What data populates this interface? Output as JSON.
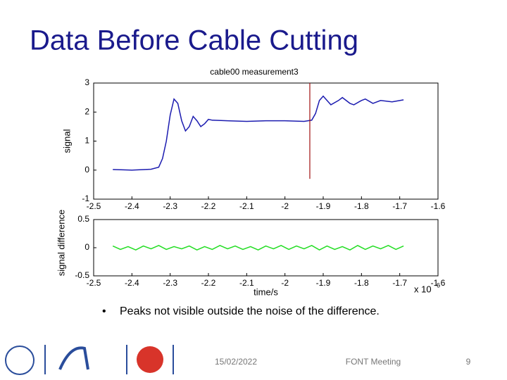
{
  "slide": {
    "title": "Data Before Cable Cutting",
    "bullet": "Peaks not visible outside the noise of the difference.",
    "date": "15/02/2022",
    "event": "FONT Meeting",
    "page": "9"
  },
  "chart_data": [
    {
      "type": "line",
      "title": "cable00 measurement3",
      "y_label": "signal",
      "x": [
        -2.45,
        -2.4,
        -2.35,
        -2.33,
        -2.32,
        -2.31,
        -2.3,
        -2.29,
        -2.28,
        -2.27,
        -2.26,
        -2.25,
        -2.24,
        -2.23,
        -2.22,
        -2.21,
        -2.2,
        -2.19,
        -2.15,
        -2.1,
        -2.05,
        -2.0,
        -1.95,
        -1.94,
        -1.93,
        -1.92,
        -1.91,
        -1.9,
        -1.89,
        -1.88,
        -1.86,
        -1.85,
        -1.83,
        -1.82,
        -1.8,
        -1.79,
        -1.77,
        -1.75,
        -1.72,
        -1.69
      ],
      "series": [
        {
          "name": "signal",
          "color": "#1c1cb0",
          "values": [
            0.02,
            0.0,
            0.03,
            0.1,
            0.4,
            1.0,
            1.9,
            2.45,
            2.3,
            1.7,
            1.35,
            1.5,
            1.85,
            1.7,
            1.5,
            1.6,
            1.75,
            1.72,
            1.7,
            1.68,
            1.7,
            1.7,
            1.68,
            1.7,
            1.72,
            1.95,
            2.4,
            2.55,
            2.4,
            2.25,
            2.4,
            2.5,
            2.3,
            2.25,
            2.4,
            2.45,
            2.3,
            2.4,
            2.35,
            2.42
          ]
        }
      ],
      "vline": {
        "x": -1.935,
        "ymin": -0.3,
        "ymax": 3,
        "color": "#a01010"
      },
      "xlim": [
        -2.5,
        -1.6
      ],
      "xticks": [
        -2.5,
        -2.4,
        -2.3,
        -2.2,
        -2.1,
        -2,
        -1.9,
        -1.8,
        -1.7,
        -1.6
      ],
      "ylim": [
        -1,
        3
      ],
      "yticks": [
        -1,
        0,
        1,
        2,
        3
      ]
    },
    {
      "type": "line",
      "y_label": "signal difference",
      "x_label": "time/s",
      "x_multiplier": "x 10",
      "x_exponent": "-6",
      "x": [
        -2.45,
        -2.43,
        -2.41,
        -2.39,
        -2.37,
        -2.35,
        -2.33,
        -2.31,
        -2.29,
        -2.27,
        -2.25,
        -2.23,
        -2.21,
        -2.19,
        -2.17,
        -2.15,
        -2.13,
        -2.11,
        -2.09,
        -2.07,
        -2.05,
        -2.03,
        -2.01,
        -1.99,
        -1.97,
        -1.95,
        -1.93,
        -1.91,
        -1.89,
        -1.87,
        -1.85,
        -1.83,
        -1.81,
        -1.79,
        -1.77,
        -1.75,
        -1.73,
        -1.71,
        -1.69
      ],
      "series": [
        {
          "name": "signal difference",
          "color": "#22dd22",
          "values": [
            0.03,
            -0.03,
            0.02,
            -0.04,
            0.03,
            -0.02,
            0.04,
            -0.03,
            0.02,
            -0.02,
            0.03,
            -0.04,
            0.02,
            -0.03,
            0.04,
            -0.02,
            0.03,
            -0.03,
            0.02,
            -0.04,
            0.03,
            -0.02,
            0.04,
            -0.03,
            0.03,
            -0.02,
            0.04,
            -0.04,
            0.03,
            -0.03,
            0.02,
            -0.04,
            0.04,
            -0.03,
            0.03,
            -0.02,
            0.04,
            -0.03,
            0.03
          ]
        }
      ],
      "xlim": [
        -2.5,
        -1.6
      ],
      "xticks": [
        -2.5,
        -2.4,
        -2.3,
        -2.2,
        -2.1,
        -2,
        -1.9,
        -1.8,
        -1.7,
        -1.6
      ],
      "ylim": [
        -0.5,
        0.5
      ],
      "yticks": [
        -0.5,
        0,
        0.5
      ]
    }
  ]
}
